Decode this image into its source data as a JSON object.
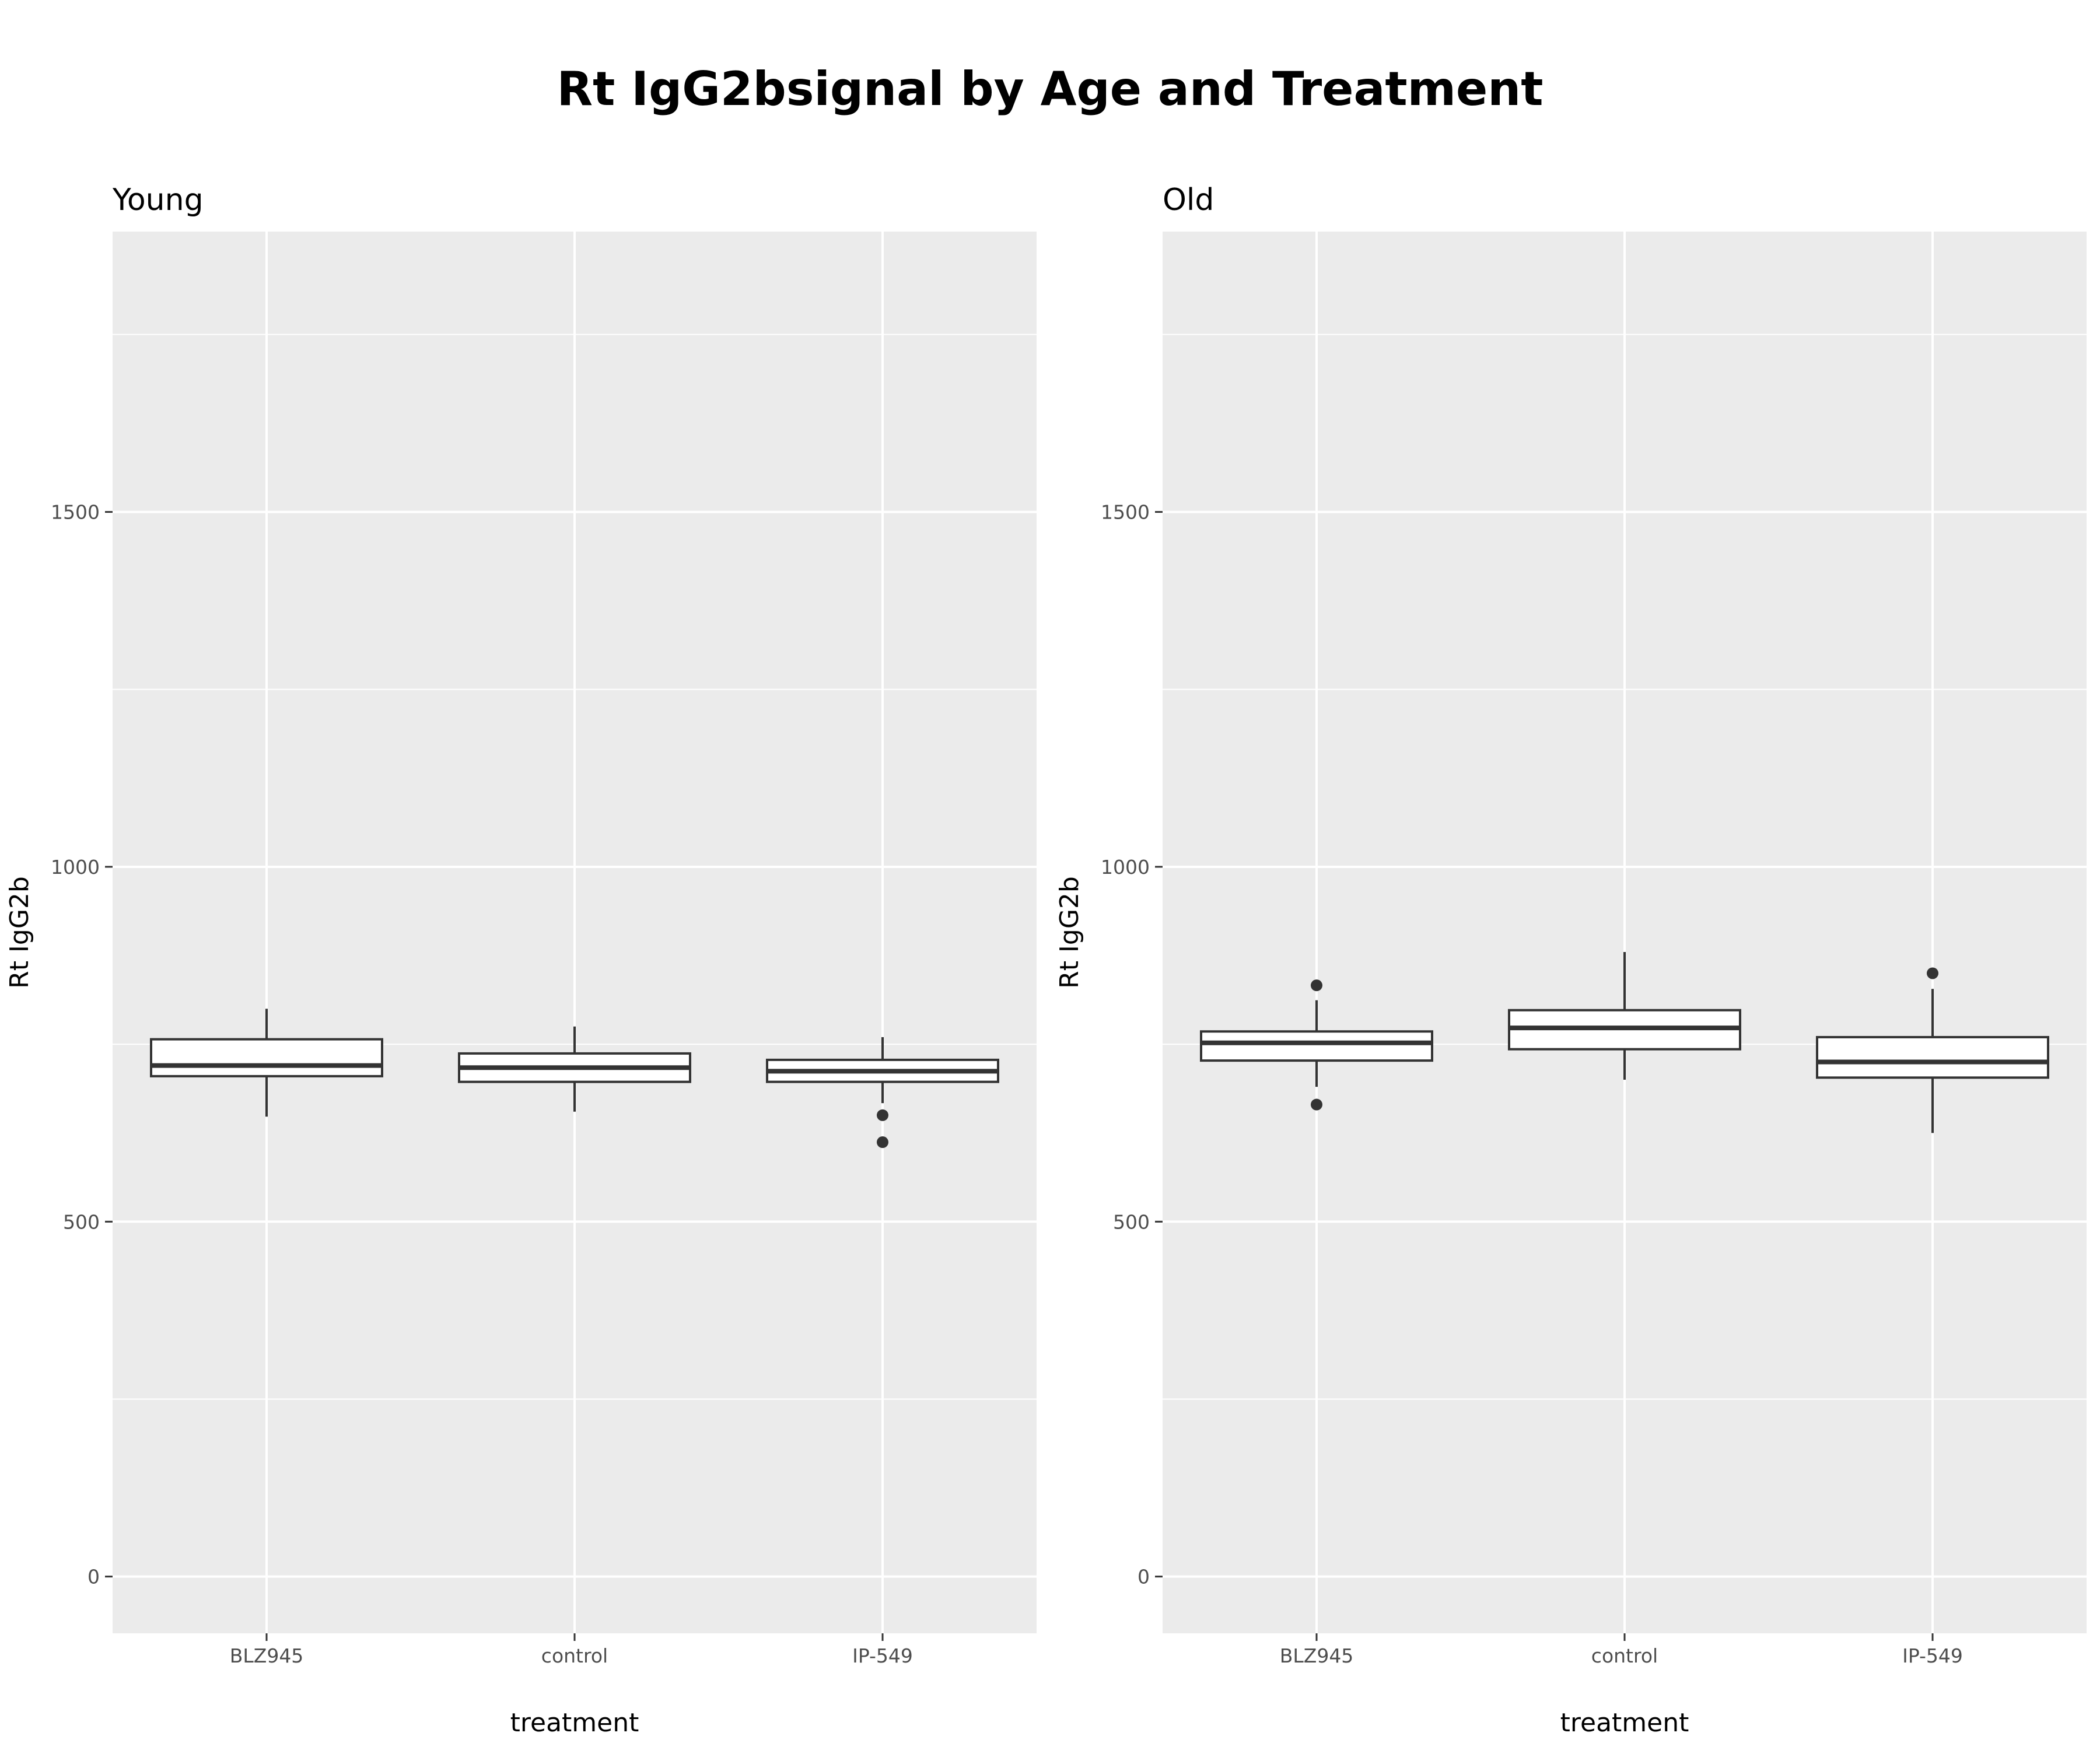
{
  "chart_data": {
    "type": "boxplot",
    "title": "Rt IgG2bsignal by Age and Treatment",
    "panels": [
      {
        "name": "Young",
        "xlabel": "treatment",
        "ylabel": "Rt IgG2b",
        "categories": [
          "BLZ945",
          "control",
          "IP-549"
        ],
        "boxes": [
          {
            "category": "BLZ945",
            "whisker_low": 648,
            "q1": 705,
            "median": 720,
            "q3": 757,
            "whisker_high": 800,
            "outliers": []
          },
          {
            "category": "control",
            "whisker_low": 655,
            "q1": 697,
            "median": 717,
            "q3": 737,
            "whisker_high": 775,
            "outliers": []
          },
          {
            "category": "IP-549",
            "whisker_low": 667,
            "q1": 697,
            "median": 712,
            "q3": 728,
            "whisker_high": 760,
            "outliers": [
              650,
              612
            ]
          }
        ]
      },
      {
        "name": "Old",
        "xlabel": "treatment",
        "ylabel": "Rt IgG2b",
        "categories": [
          "BLZ945",
          "control",
          "IP-549"
        ],
        "boxes": [
          {
            "category": "BLZ945",
            "whisker_low": 690,
            "q1": 727,
            "median": 752,
            "q3": 768,
            "whisker_high": 812,
            "outliers": [
              833,
              665
            ]
          },
          {
            "category": "control",
            "whisker_low": 700,
            "q1": 743,
            "median": 773,
            "q3": 798,
            "whisker_high": 880,
            "outliers": []
          },
          {
            "category": "IP-549",
            "whisker_low": 625,
            "q1": 703,
            "median": 725,
            "q3": 760,
            "whisker_high": 828,
            "outliers": [
              850
            ]
          }
        ]
      }
    ],
    "ylim": [
      -80,
      1895
    ],
    "yticks": [
      0,
      500,
      1000,
      1500
    ],
    "ytick_labels": [
      "0",
      "500",
      "1000",
      "1500"
    ],
    "y_minor_gridlines": [
      250,
      750,
      1250,
      1750
    ],
    "grid": true,
    "panel_background": "#ebebeb",
    "grid_color": "#ffffff",
    "box_fill": "#ffffff",
    "line_color": "#333333"
  }
}
